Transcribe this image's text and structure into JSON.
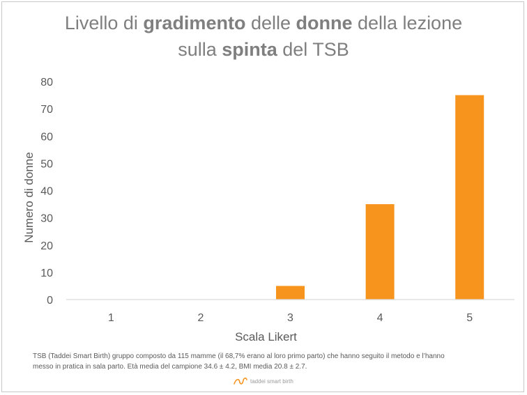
{
  "title": {
    "line1": [
      {
        "text": "Livello di ",
        "bold": false
      },
      {
        "text": "gradimento",
        "bold": true
      },
      {
        "text": " delle ",
        "bold": false
      },
      {
        "text": "donne",
        "bold": true
      },
      {
        "text": " della lezione",
        "bold": false
      }
    ],
    "line2": [
      {
        "text": "sulla ",
        "bold": false
      },
      {
        "text": "spinta",
        "bold": true
      },
      {
        "text": " del TSB",
        "bold": false
      }
    ]
  },
  "chart_data": {
    "type": "bar",
    "categories": [
      "1",
      "2",
      "3",
      "4",
      "5"
    ],
    "values": [
      0,
      0,
      5,
      35,
      75
    ],
    "xlabel": "Scala Likert",
    "ylabel": "Numero di donne",
    "ylim": [
      0,
      80
    ],
    "yticks": [
      "0",
      "10",
      "20",
      "30",
      "40",
      "50",
      "60",
      "70",
      "80"
    ],
    "grid": false,
    "bar_color": "#f7941d",
    "axis_color": "#d9d9d9",
    "text_color": "#595959"
  },
  "footnote": {
    "line1": "TSB (Taddei Smart Birth) gruppo composto da 115 mamme (il 68,7% erano al loro primo parto) che hanno seguito il metodo e l’hanno",
    "line2": "messo in pratica in sala parto. Età media del campione 34.6 ± 4.2, BMI media 20.8 ± 2.7."
  },
  "logo": {
    "text": "taddei smart birth",
    "icon": "taddei-logo-icon",
    "color": "#f7941d"
  }
}
